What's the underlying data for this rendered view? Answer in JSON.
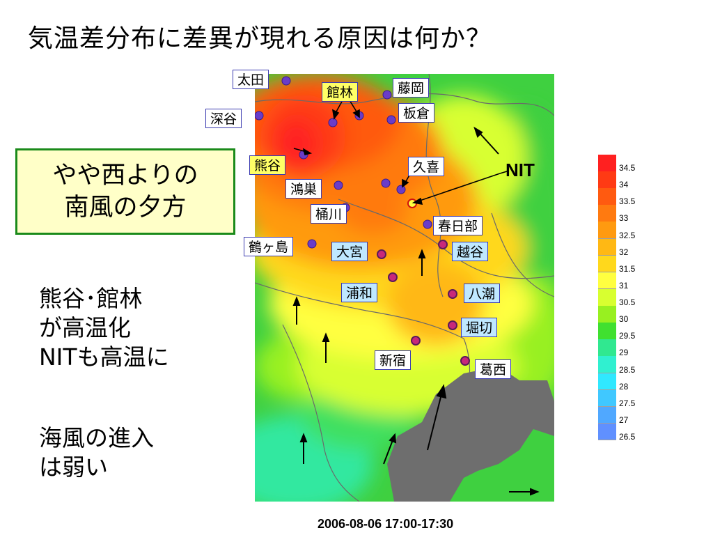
{
  "title": "気温差分布に差異が現れる原因は何か？",
  "callout": {
    "line1": "やや西よりの",
    "line2": "南風の夕方"
  },
  "note1": {
    "line1": "熊谷･館林",
    "line2": "が高温化",
    "line3": "NITも高温に"
  },
  "note2": {
    "line1": "海風の進入",
    "line2": "は弱い"
  },
  "stations": {
    "ota": "太田",
    "tatebayashi": "館林",
    "fujioka": "藤岡",
    "fukaya": "深谷",
    "itakura": "板倉",
    "kumagaya": "熊谷",
    "kuki": "久喜",
    "konosu": "鴻巣",
    "okegawa": "桶川",
    "kasukabe": "春日部",
    "tsurugashima": "鶴ヶ島",
    "omiya": "大宮",
    "koshigaya": "越谷",
    "urawa": "浦和",
    "yashio": "八潮",
    "horikiri": "堀切",
    "shinjuku": "新宿",
    "kasai": "葛西"
  },
  "nit_label": "NIT",
  "colorbar": {
    "ticks": [
      "34.5",
      "34",
      "33.5",
      "33",
      "32.5",
      "32",
      "31.5",
      "31",
      "30.5",
      "30",
      "29.5",
      "29",
      "28.5",
      "28",
      "27.5",
      "27",
      "26.5"
    ],
    "colors": [
      "#ff2020",
      "#ff3a14",
      "#ff5a10",
      "#ff7a10",
      "#ff9a10",
      "#ffb814",
      "#ffd81c",
      "#ffff40",
      "#d8ff30",
      "#98f020",
      "#40e030",
      "#30e890",
      "#30f0d0",
      "#30e8ff",
      "#40c8ff",
      "#50a8ff",
      "#6090ff"
    ]
  },
  "timestamp": "2006-08-06 17:00-17:30"
}
